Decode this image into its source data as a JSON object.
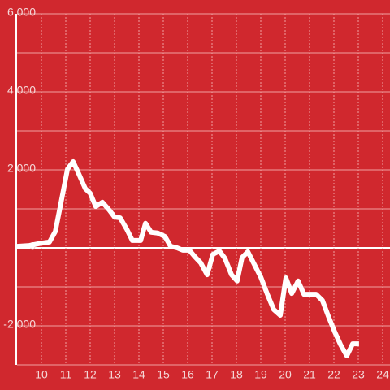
{
  "chart_data": {
    "type": "line",
    "x": [
      9.0,
      9.5,
      10.0,
      10.33,
      10.57,
      10.8,
      11.07,
      11.3,
      11.53,
      11.8,
      12.0,
      12.23,
      12.5,
      12.77,
      13.0,
      13.23,
      13.5,
      13.73,
      14.07,
      14.27,
      14.5,
      14.77,
      15.07,
      15.3,
      15.57,
      15.8,
      16.07,
      16.3,
      16.53,
      16.8,
      17.03,
      17.3,
      17.53,
      17.8,
      18.03,
      18.23,
      18.47,
      18.73,
      19.0,
      19.27,
      19.53,
      19.8,
      20.03,
      20.27,
      20.53,
      20.77,
      21.0,
      21.27,
      21.53,
      21.77,
      22.03,
      22.27,
      22.53,
      22.77,
      23.03
    ],
    "series": [
      {
        "color": "#ffffff",
        "values": [
          40,
          60,
          120,
          150,
          420,
          1150,
          2020,
          2210,
          1900,
          1520,
          1400,
          1060,
          1170,
          980,
          790,
          770,
          480,
          190,
          190,
          630,
          400,
          380,
          290,
          40,
          0,
          -60,
          -60,
          -230,
          -380,
          -690,
          -170,
          -80,
          -270,
          -690,
          -850,
          -250,
          -100,
          -420,
          -750,
          -1190,
          -1580,
          -1730,
          -770,
          -1170,
          -850,
          -1190,
          -1190,
          -1190,
          -1350,
          -1750,
          -2150,
          -2480,
          -2770,
          -2460,
          -2460
        ]
      }
    ],
    "xlim": [
      9,
      24.3
    ],
    "xticks": [
      10,
      11,
      12,
      13,
      14,
      15,
      16,
      17,
      18,
      19,
      20,
      21,
      22,
      23,
      24
    ],
    "ylim": [
      -3000,
      6000
    ],
    "yticks": [
      {
        "value": -2000,
        "label": "-2,000"
      },
      0,
      {
        "value": 2000,
        "label": "2,000"
      },
      {
        "value": 4000,
        "label": "4,000"
      },
      {
        "value": 6000,
        "label": "6,000"
      }
    ],
    "yminorticks": [
      -3000,
      -1000,
      1000,
      3000,
      5000
    ],
    "grid": true
  }
}
